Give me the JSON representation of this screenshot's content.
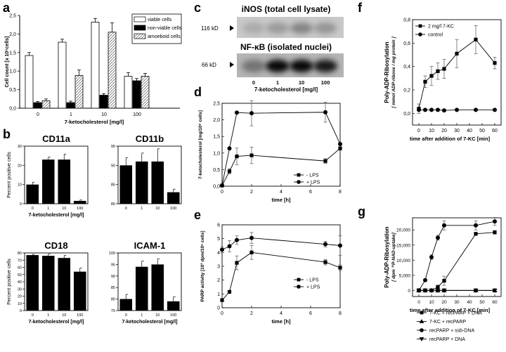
{
  "panel_letters": [
    "a",
    "b",
    "c",
    "d",
    "e",
    "f",
    "g"
  ],
  "chart_data": [
    {
      "id": "a",
      "type": "bar",
      "ylabel": "Cell count [x 10⁶cells]",
      "xlabel": "7-ketocholesterol [mg/l]",
      "categories": [
        "0",
        "1",
        "10",
        "100"
      ],
      "ylim": [
        0,
        2.5
      ],
      "yticks": [
        "0,0",
        "0,5",
        "1,0",
        "1,5",
        "2,0",
        "2,5"
      ],
      "legend": "top-right",
      "series": [
        {
          "name": "viable cells",
          "fill": "white",
          "values": [
            1.42,
            1.78,
            2.32,
            0.86
          ],
          "err": [
            0.08,
            0.08,
            0.1,
            0.1
          ]
        },
        {
          "name": "non-viable cells",
          "fill": "black",
          "values": [
            0.15,
            0.15,
            0.35,
            0.74
          ],
          "err": [
            0.03,
            0.04,
            0.04,
            0.06
          ]
        },
        {
          "name": "amoeboid cells",
          "fill": "hatch",
          "values": [
            0.2,
            0.88,
            2.05,
            0.86
          ],
          "err": [
            0.05,
            0.15,
            0.25,
            0.08
          ]
        }
      ]
    },
    {
      "id": "b1",
      "type": "bar",
      "title": "CD11a",
      "ylabel": "Percent positive cells",
      "xlabel": "7-ketocholesterol [mg/l]",
      "categories": [
        "0",
        "1",
        "10",
        "100"
      ],
      "ylim": [
        0,
        30
      ],
      "yticks": [
        "0",
        "10",
        "20",
        "30"
      ],
      "values": [
        10,
        23,
        23,
        1.5
      ],
      "err": [
        1.2,
        1.3,
        2.8,
        0.5
      ]
    },
    {
      "id": "b2",
      "type": "bar",
      "title": "CD11b",
      "ylabel": "",
      "xlabel": "",
      "categories": [
        "0",
        "1",
        "10",
        "100"
      ],
      "ylim": [
        80,
        95
      ],
      "yticks": [
        "80",
        "85",
        "90",
        "95"
      ],
      "values": [
        90,
        91,
        91,
        83
      ],
      "err": [
        2.0,
        2.2,
        3.3,
        0.8
      ]
    },
    {
      "id": "b3",
      "type": "bar",
      "title": "CD18",
      "ylabel": "Percent positive cells",
      "xlabel": "7-ketocholesterol [mg/l]",
      "categories": [
        "0",
        "1",
        "10",
        "100"
      ],
      "ylim": [
        0,
        80
      ],
      "yticks": [
        "0",
        "10",
        "20",
        "30",
        "40",
        "50",
        "60",
        "70",
        "80"
      ],
      "values": [
        77,
        76,
        73,
        54
      ],
      "err": [
        1.0,
        2.5,
        3.5,
        5.0
      ]
    },
    {
      "id": "b4",
      "type": "bar",
      "title": "ICAM-1",
      "ylabel": "",
      "xlabel": "7-ketocholesterol [mg/l]",
      "categories": [
        "0",
        "1",
        "10",
        "100"
      ],
      "ylim": [
        75,
        100
      ],
      "yticks": [
        "75",
        "80",
        "85",
        "90",
        "95",
        "100"
      ],
      "values": [
        80,
        94,
        95,
        79
      ],
      "err": [
        2.0,
        2.5,
        2.5,
        2.0
      ]
    },
    {
      "id": "d",
      "type": "line",
      "ylabel": "7-ketocholesterol [mg/10⁶ cells]",
      "xlabel": "time [h]",
      "xlim": [
        0,
        8
      ],
      "ylim": [
        0,
        2.5
      ],
      "xticks": [
        "0",
        "2",
        "4",
        "6",
        "8"
      ],
      "yticks": [
        "0,0",
        "0,5",
        "1,0",
        "1,5",
        "2,0",
        "2,5"
      ],
      "legend": "bottom-right",
      "series": [
        {
          "name": "- LPS",
          "marker": "square",
          "x": [
            0,
            0.5,
            1,
            2,
            7,
            8
          ],
          "y": [
            0.02,
            0.45,
            0.9,
            0.93,
            0.76,
            1.14
          ],
          "err": [
            0,
            0.08,
            0.25,
            0.25,
            0.07,
            0.05
          ]
        },
        {
          "name": "+ LPS",
          "marker": "circle",
          "x": [
            0,
            0.5,
            1,
            2,
            7,
            8
          ],
          "y": [
            0.02,
            1.14,
            2.22,
            2.2,
            2.23,
            1.27
          ],
          "err": [
            0,
            0,
            0,
            0.38,
            0.3,
            0
          ]
        }
      ]
    },
    {
      "id": "e",
      "type": "line",
      "ylabel": "PARP activity [10³ dpm/10⁶ cells]",
      "xlabel": "time [h]",
      "xlim": [
        0,
        8
      ],
      "ylim": [
        0,
        6
      ],
      "xticks": [
        "0",
        "2",
        "4",
        "6",
        "8"
      ],
      "yticks": [
        "0",
        "1",
        "2",
        "3",
        "4",
        "5",
        "6"
      ],
      "legend": "bottom-right",
      "series": [
        {
          "name": "- LPS",
          "marker": "square",
          "x": [
            0,
            0.5,
            1,
            2,
            7,
            8
          ],
          "y": [
            0.55,
            1.15,
            3.25,
            4.0,
            3.3,
            2.9
          ],
          "err": [
            0,
            0,
            0.5,
            0.5,
            0.2,
            0.2
          ]
        },
        {
          "name": "+ LPS",
          "marker": "circle",
          "x": [
            0,
            0.5,
            1,
            2,
            7,
            8
          ],
          "y": [
            4.2,
            4.45,
            4.9,
            5.05,
            4.6,
            4.5
          ],
          "err": [
            0.2,
            0.4,
            0.3,
            0.4,
            0.2,
            0.7
          ]
        }
      ]
    },
    {
      "id": "f",
      "type": "line",
      "ylabel": "Poly-ADP-Ribosylation",
      "ylabel2": "[ mmol ADP-ribose / mg protein ]",
      "xlabel": "time after addition of 7-KC [min]",
      "xlim": [
        -5,
        65
      ],
      "ylim": [
        -0.1,
        0.8
      ],
      "xticks": [
        "0",
        "10",
        "20",
        "30",
        "40",
        "50",
        "60"
      ],
      "yticks": [
        "0,0",
        "0,2",
        "0,4",
        "0,6",
        "0,8"
      ],
      "legend": "top-left",
      "series": [
        {
          "name": "2 mg/l 7-KC",
          "marker": "square",
          "x": [
            0,
            5,
            10,
            15,
            20,
            30,
            45,
            60
          ],
          "y": [
            0.04,
            0.27,
            0.32,
            0.36,
            0.38,
            0.51,
            0.63,
            0.43
          ],
          "err": [
            0.04,
            0.05,
            0.08,
            0.07,
            0.08,
            0.12,
            0.12,
            0.05
          ]
        },
        {
          "name": "control",
          "marker": "circle",
          "x": [
            0,
            5,
            10,
            15,
            20,
            30,
            45,
            60
          ],
          "y": [
            0.03,
            0.03,
            0.03,
            0.03,
            0.025,
            0.03,
            0.03,
            0.03
          ],
          "err": [
            0,
            0,
            0,
            0,
            0,
            0,
            0,
            0
          ]
        }
      ]
    },
    {
      "id": "g",
      "type": "line",
      "ylabel": "Poly-ADP-Ribosylation",
      "ylabel2": "[ dpm ³²P-NAD-uptake]",
      "xlabel": "time after addition of 7-KC [min]",
      "xlim": [
        -5,
        65
      ],
      "ylim": [
        -2000,
        24000
      ],
      "xticks": [
        "0",
        "10",
        "20",
        "30",
        "40",
        "50",
        "60"
      ],
      "yticks": [
        "0",
        "5,000",
        "10,000",
        "15,000",
        "20,000"
      ],
      "legend": "below",
      "series": [
        {
          "name": "7-KC + recPARP + DNA",
          "marker": "square",
          "x": [
            0,
            5,
            10,
            15,
            20,
            45,
            60
          ],
          "y": [
            0,
            0,
            0,
            1200,
            3200,
            18700,
            19200
          ],
          "err": [
            0,
            0,
            0,
            300,
            1500,
            500,
            600
          ]
        },
        {
          "name": "7-KC + recPARP",
          "marker": "triangle",
          "x": [
            0,
            5,
            10,
            15,
            20,
            45,
            60
          ],
          "y": [
            0,
            0,
            0,
            0,
            0,
            0,
            0
          ],
          "err": [
            0,
            0,
            0,
            0,
            0,
            0,
            0
          ]
        },
        {
          "name": "recPARP + ssb-DNA",
          "marker": "circle",
          "x": [
            0,
            5,
            10,
            15,
            20,
            45,
            60
          ],
          "y": [
            0,
            3400,
            11000,
            17400,
            21500,
            21500,
            22800
          ],
          "err": [
            0,
            300,
            800,
            800,
            1500,
            1500,
            1300
          ]
        },
        {
          "name": "recPARP + DNA",
          "marker": "downtriangle",
          "x": [
            0,
            5,
            10,
            15,
            20,
            45,
            60
          ],
          "y": [
            0,
            0,
            0,
            0,
            0,
            0,
            0
          ],
          "err": [
            0,
            0,
            0,
            0,
            0,
            0,
            0
          ]
        }
      ]
    }
  ],
  "blot": {
    "title_top": "iNOS (total cell lysate)",
    "title_bottom": "NF-κB (isolated nuclei)",
    "marker_top": "116 kD",
    "marker_bottom": "66 kD",
    "lanes": [
      "0",
      "1",
      "10",
      "100"
    ],
    "xlabel": "7-ketocholesterol [mg/l]",
    "intensity_top": [
      0.25,
      0.4,
      0.6,
      0.45
    ],
    "intensity_bottom": [
      0.35,
      0.95,
      0.95,
      0.85
    ]
  }
}
